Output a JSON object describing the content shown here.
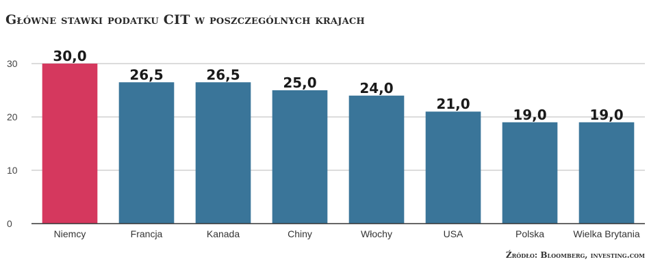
{
  "chart_data": {
    "type": "bar",
    "title": "Główne stawki podatku CIT w poszczególnych krajach",
    "categories": [
      "Niemcy",
      "Francja",
      "Kanada",
      "Chiny",
      "Włochy",
      "USA",
      "Polska",
      "Wielka Brytania"
    ],
    "values": [
      30.0,
      26.5,
      26.5,
      25.0,
      24.0,
      21.0,
      19.0,
      19.0
    ],
    "data_labels": [
      "30,0",
      "26,5",
      "26,5",
      "25,0",
      "24,0",
      "21,0",
      "19,0",
      "19,0"
    ],
    "y_ticks": [
      0,
      10,
      20,
      30
    ],
    "ylim": [
      0,
      30
    ],
    "grid": true,
    "xlabel": "",
    "ylabel": "",
    "source": "Źródło: Bloomberg, investing.com",
    "colors": {
      "highlight": "#d5385e",
      "default": "#3a7599",
      "grid": "#c8c8c8",
      "axis": "#333333"
    },
    "highlight_index": 0
  }
}
